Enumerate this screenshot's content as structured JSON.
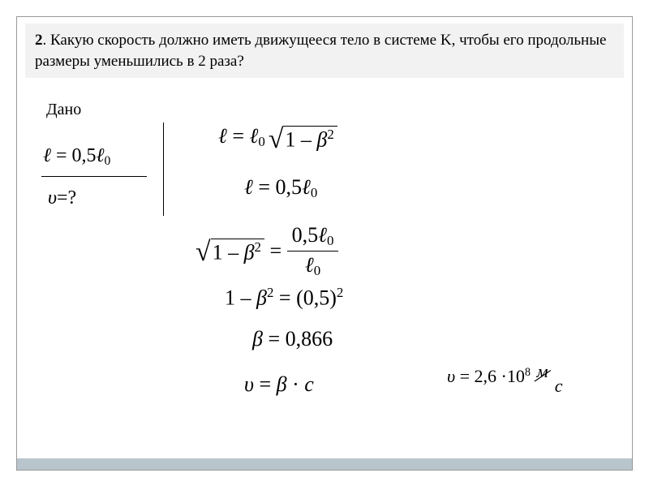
{
  "question": {
    "number": "2",
    "text": ". Какую скорость должно иметь движущееся тело в системе K, чтобы его продольные размеры уменьшились в 2 раза?"
  },
  "given": {
    "label": "Дано",
    "equation": "ℓ = 0,5ℓ",
    "sub0": "0"
  },
  "find": {
    "var": "υ",
    "eq": "=?",
    "question_mark": "?"
  },
  "formulas": {
    "f1_ell": "ℓ",
    "f1_eq": " = ",
    "f1_ell0": "ℓ",
    "f1_sub": "0",
    "f1_one": "1",
    "f1_minus": " – ",
    "f1_beta": "β",
    "f1_sq": "2",
    "f2_ell": "ℓ",
    "f2_eq": " = 0,5",
    "f2_ell0": "ℓ",
    "f2_sub": "0",
    "f3_one": "1",
    "f3_minus": " – ",
    "f3_beta": "β",
    "f3_sq": "2",
    "f3_eq": " = ",
    "f3_num": "0,5",
    "f3_ell": "ℓ",
    "f3_sub1": "0",
    "f3_den_ell": "ℓ",
    "f3_sub2": "0",
    "f4_one": "1",
    "f4_minus": " – ",
    "f4_beta": "β",
    "f4_sq": "2",
    "f4_eq": " = (0,5)",
    "f4_sq2": "2",
    "f5_beta": "β",
    "f5_eq": " = 0,866",
    "f6_v": "υ",
    "f6_eq": " = ",
    "f6_beta": "β",
    "f6_dot": " · ",
    "f6_c": "c",
    "f7_v": "υ",
    "f7_eq": " = 2,6 ·10",
    "f7_exp": "8",
    "f7_unit_m": "м",
    "f7_unit_s": "с"
  }
}
